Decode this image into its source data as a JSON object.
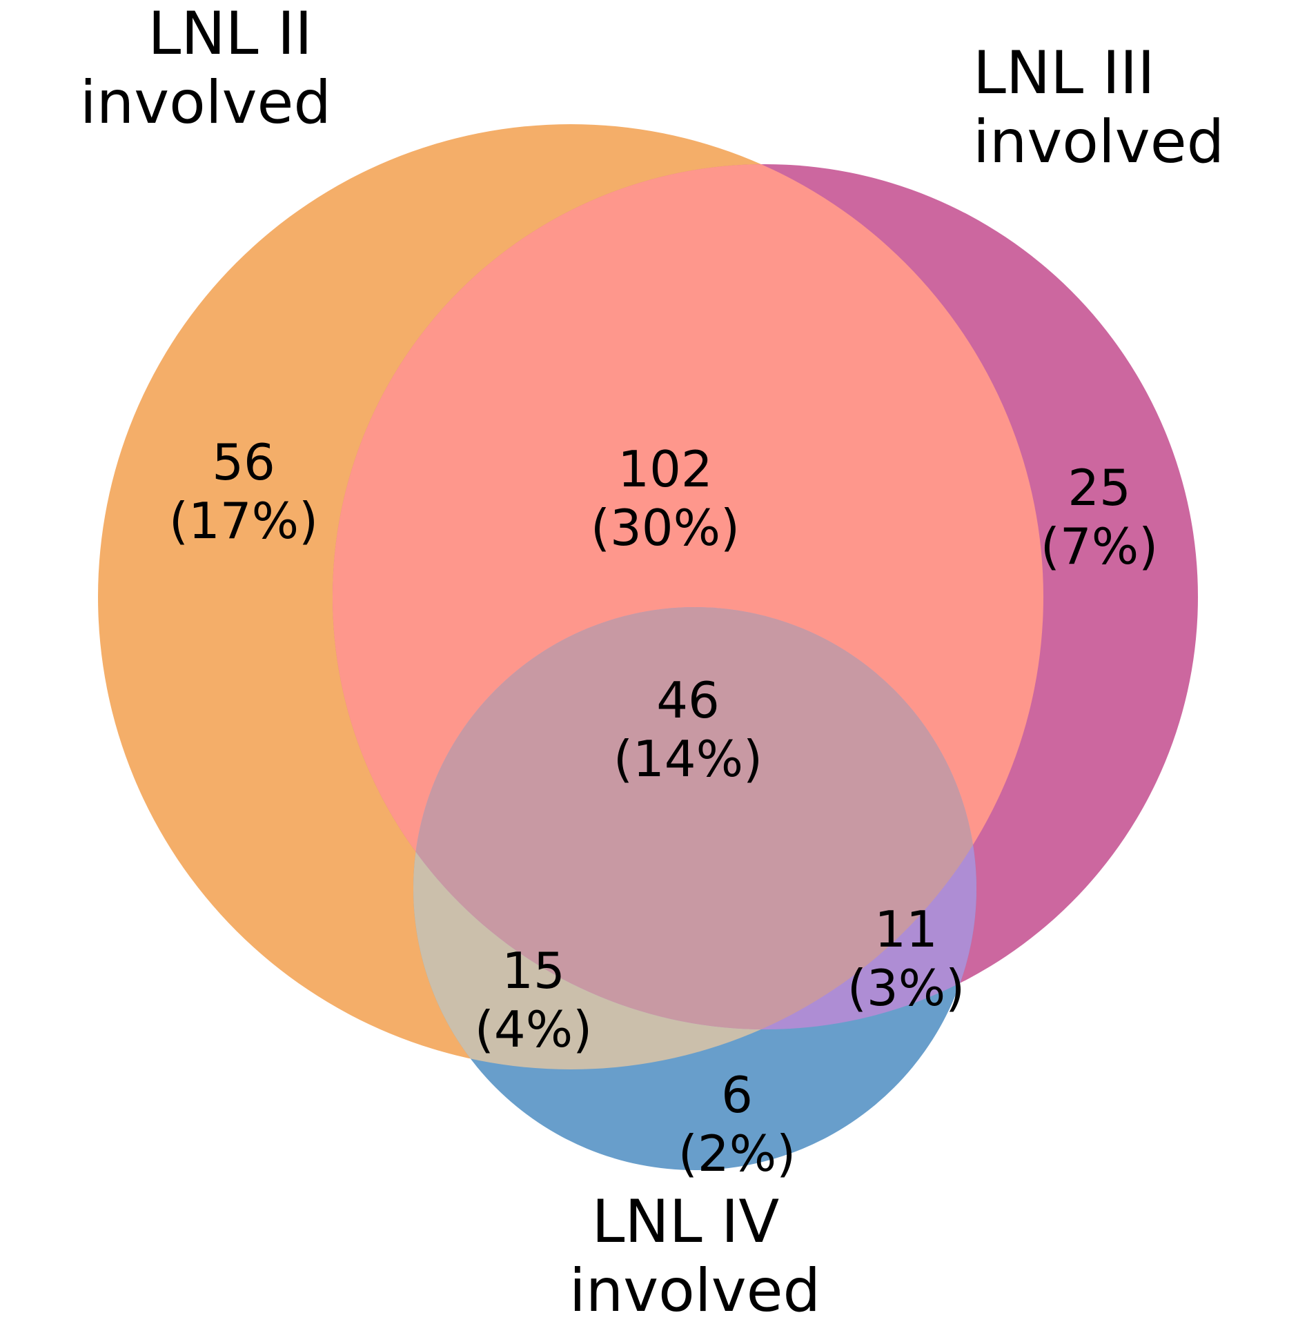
{
  "venn": {
    "sets": [
      {
        "name": "LNL II",
        "label_line1": "LNL II",
        "label_line2": "involved",
        "color": "#f4ae69"
      },
      {
        "name": "LNL III",
        "label_line1": "LNL III",
        "label_line2": "involved",
        "color": "#cc679f"
      },
      {
        "name": "LNL IV",
        "label_line1": "LNL IV",
        "label_line2": "involved",
        "color": "#689ecb"
      }
    ],
    "regions": [
      {
        "sets": [
          "LNL II"
        ],
        "count": "56",
        "percent": "(17%)"
      },
      {
        "sets": [
          "LNL II",
          "LNL III"
        ],
        "count": "102",
        "percent": "(30%)"
      },
      {
        "sets": [
          "LNL III"
        ],
        "count": "25",
        "percent": "(7%)"
      },
      {
        "sets": [
          "LNL II",
          "LNL III",
          "LNL IV"
        ],
        "count": "46",
        "percent": "(14%)"
      },
      {
        "sets": [
          "LNL II",
          "LNL IV"
        ],
        "count": "15",
        "percent": "(4%)"
      },
      {
        "sets": [
          "LNL III",
          "LNL IV"
        ],
        "count": "11",
        "percent": "(3%)"
      },
      {
        "sets": [
          "LNL IV"
        ],
        "count": "6",
        "percent": "(2%)"
      }
    ],
    "region_colors": {
      "ii_iii": "#fe978c",
      "ii_iii_iv": "#c899a3",
      "ii_iv": "#cbbfab",
      "iii_iv": "#ae8dd4"
    }
  }
}
